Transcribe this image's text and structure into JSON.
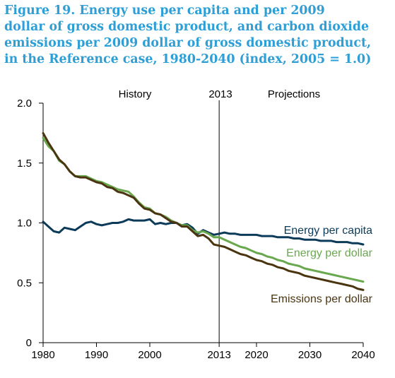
{
  "title_lines": [
    "Figure 19. Energy use per capita and per 2009",
    "dollar of gross domestic product, and carbon dioxide",
    "emissions per 2009 dollar of gross domestic product,",
    "in the Reference case, 1980-2040 (index, 2005 = 1.0)"
  ],
  "annotations": {
    "history": "History",
    "divider": "2013",
    "projections": "Projections"
  },
  "colors": {
    "capita": "#0c3b5a",
    "dollar": "#6aa84f",
    "emissions": "#4a3510"
  },
  "chart_data": {
    "type": "line",
    "title": "Figure 19. Energy use per capita and per 2009 dollar of gross domestic product, and carbon dioxide emissions per 2009 dollar of gross domestic product, in the Reference case, 1980-2040 (index, 2005 = 1.0)",
    "xlim": [
      1980,
      2040
    ],
    "ylim": [
      0,
      2.0
    ],
    "x_ticks": [
      1980,
      1990,
      2000,
      2013,
      2020,
      2030,
      2040
    ],
    "x_tick_labels": [
      "1980",
      "1990",
      "2000",
      "2013",
      "2020",
      "2030",
      "2040"
    ],
    "y_ticks": [
      0,
      0.5,
      1.0,
      1.5,
      2.0
    ],
    "y_tick_labels": [
      "0",
      "0.5",
      "1.0",
      "1.5",
      "2.0"
    ],
    "vertical_line_x": 2013,
    "grid": false,
    "legend": "inline labels at right",
    "series": [
      {
        "name": "Energy per capita",
        "x": [
          1980,
          1981,
          1982,
          1983,
          1984,
          1985,
          1986,
          1987,
          1988,
          1989,
          1990,
          1991,
          1992,
          1993,
          1994,
          1995,
          1996,
          1997,
          1998,
          1999,
          2000,
          2001,
          2002,
          2003,
          2004,
          2005,
          2006,
          2007,
          2008,
          2009,
          2010,
          2011,
          2012,
          2013,
          2014,
          2015,
          2016,
          2017,
          2018,
          2019,
          2020,
          2021,
          2022,
          2023,
          2024,
          2025,
          2026,
          2027,
          2028,
          2029,
          2030,
          2031,
          2032,
          2033,
          2034,
          2035,
          2036,
          2037,
          2038,
          2039,
          2040
        ],
        "values": [
          1.01,
          0.97,
          0.93,
          0.92,
          0.96,
          0.95,
          0.94,
          0.97,
          1.0,
          1.01,
          0.99,
          0.98,
          0.99,
          1.0,
          1.0,
          1.01,
          1.03,
          1.02,
          1.02,
          1.02,
          1.03,
          0.99,
          1.0,
          0.99,
          1.0,
          1.0,
          0.98,
          0.99,
          0.96,
          0.91,
          0.94,
          0.92,
          0.9,
          0.91,
          0.92,
          0.91,
          0.91,
          0.9,
          0.9,
          0.9,
          0.9,
          0.89,
          0.89,
          0.89,
          0.88,
          0.88,
          0.88,
          0.87,
          0.87,
          0.86,
          0.86,
          0.86,
          0.85,
          0.85,
          0.85,
          0.84,
          0.84,
          0.84,
          0.83,
          0.83,
          0.82
        ]
      },
      {
        "name": "Energy per dollar",
        "x": [
          1980,
          1981,
          1982,
          1983,
          1984,
          1985,
          1986,
          1987,
          1988,
          1989,
          1990,
          1991,
          1992,
          1993,
          1994,
          1995,
          1996,
          1997,
          1998,
          1999,
          2000,
          2001,
          2002,
          2003,
          2004,
          2005,
          2006,
          2007,
          2008,
          2009,
          2010,
          2011,
          2012,
          2013,
          2014,
          2015,
          2016,
          2017,
          2018,
          2019,
          2020,
          2021,
          2022,
          2023,
          2024,
          2025,
          2026,
          2027,
          2028,
          2029,
          2030,
          2031,
          2032,
          2033,
          2034,
          2035,
          2036,
          2037,
          2038,
          2039,
          2040
        ],
        "values": [
          1.71,
          1.64,
          1.6,
          1.52,
          1.49,
          1.43,
          1.39,
          1.39,
          1.39,
          1.37,
          1.35,
          1.34,
          1.32,
          1.3,
          1.28,
          1.27,
          1.26,
          1.22,
          1.17,
          1.13,
          1.12,
          1.08,
          1.07,
          1.05,
          1.02,
          1.0,
          0.98,
          0.98,
          0.94,
          0.92,
          0.93,
          0.91,
          0.88,
          0.88,
          0.86,
          0.84,
          0.82,
          0.8,
          0.79,
          0.77,
          0.75,
          0.74,
          0.72,
          0.71,
          0.69,
          0.68,
          0.66,
          0.65,
          0.64,
          0.62,
          0.61,
          0.6,
          0.59,
          0.58,
          0.57,
          0.56,
          0.55,
          0.54,
          0.53,
          0.52,
          0.51
        ]
      },
      {
        "name": "Emissions per dollar",
        "x": [
          1980,
          1981,
          1982,
          1983,
          1984,
          1985,
          1986,
          1987,
          1988,
          1989,
          1990,
          1991,
          1992,
          1993,
          1994,
          1995,
          1996,
          1997,
          1998,
          1999,
          2000,
          2001,
          2002,
          2003,
          2004,
          2005,
          2006,
          2007,
          2008,
          2009,
          2010,
          2011,
          2012,
          2013,
          2014,
          2015,
          2016,
          2017,
          2018,
          2019,
          2020,
          2021,
          2022,
          2023,
          2024,
          2025,
          2026,
          2027,
          2028,
          2029,
          2030,
          2031,
          2032,
          2033,
          2034,
          2035,
          2036,
          2037,
          2038,
          2039,
          2040
        ],
        "values": [
          1.75,
          1.67,
          1.6,
          1.53,
          1.49,
          1.43,
          1.39,
          1.38,
          1.38,
          1.36,
          1.34,
          1.33,
          1.3,
          1.29,
          1.26,
          1.25,
          1.23,
          1.21,
          1.16,
          1.12,
          1.11,
          1.08,
          1.07,
          1.04,
          1.01,
          1.0,
          0.97,
          0.97,
          0.93,
          0.89,
          0.9,
          0.87,
          0.82,
          0.81,
          0.8,
          0.78,
          0.76,
          0.74,
          0.73,
          0.71,
          0.69,
          0.68,
          0.66,
          0.65,
          0.63,
          0.62,
          0.6,
          0.59,
          0.58,
          0.56,
          0.55,
          0.54,
          0.53,
          0.52,
          0.51,
          0.5,
          0.49,
          0.48,
          0.47,
          0.45,
          0.44
        ]
      }
    ]
  }
}
